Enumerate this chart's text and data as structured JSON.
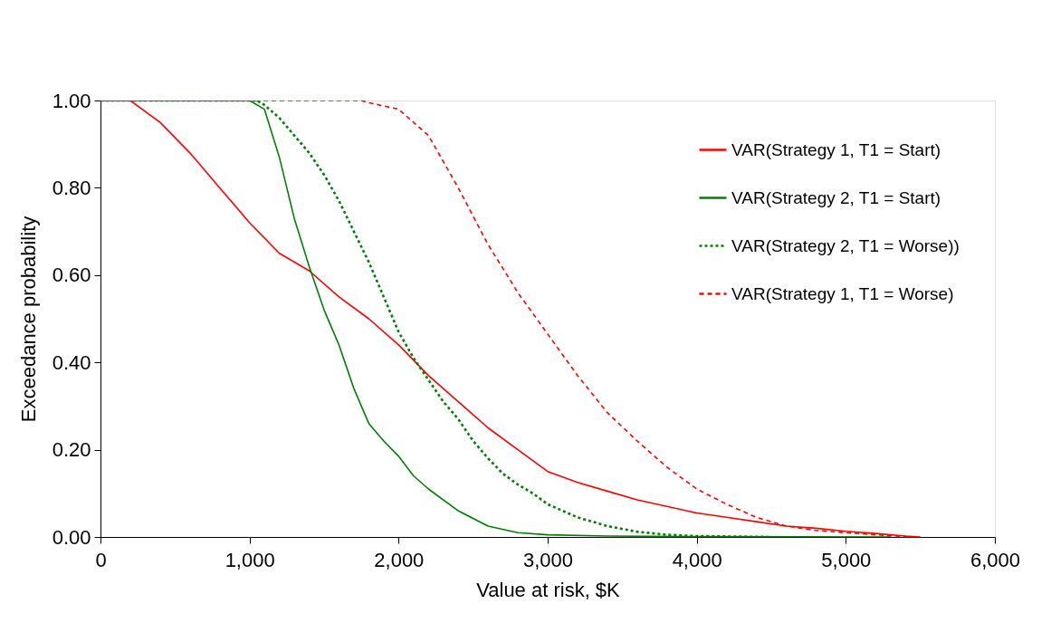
{
  "chart_data": {
    "type": "line",
    "xlabel": "Value at risk, $K",
    "ylabel": "Exceedance probability",
    "xlim": [
      0,
      6000
    ],
    "ylim": [
      0,
      1
    ],
    "xticks": [
      0,
      {
        "value": 1000,
        "label": "1,000"
      },
      {
        "value": 2000,
        "label": "2,000"
      },
      {
        "value": 3000,
        "label": "3,000"
      },
      {
        "value": 4000,
        "label": "4,000"
      },
      {
        "value": 5000,
        "label": "5,000"
      },
      {
        "value": 6000,
        "label": "6,000"
      }
    ],
    "yticks": [
      {
        "value": 0,
        "label": "0.00"
      },
      {
        "value": 0.2,
        "label": "0.20"
      },
      {
        "value": 0.4,
        "label": "0.40"
      },
      {
        "value": 0.6,
        "label": "0.60"
      },
      {
        "value": 0.8,
        "label": "0.80"
      },
      {
        "value": 1,
        "label": "1.00"
      }
    ],
    "grid": false,
    "legend": "top right",
    "marker": "none",
    "series": [
      {
        "name": "VAR(Strategy 1, T1 = Start)",
        "color": "#ff0000",
        "line_style": "solid",
        "x": [
          0,
          200,
          400,
          600,
          800,
          1000,
          1200,
          1400,
          1600,
          1800,
          2000,
          2200,
          2400,
          2600,
          2800,
          3000,
          3200,
          3400,
          3600,
          3800,
          4000,
          4200,
          4400,
          4600,
          4800,
          5000,
          5200,
          5400,
          5500
        ],
        "values": [
          1,
          1,
          0.95,
          0.88,
          0.8,
          0.72,
          0.65,
          0.61,
          0.55,
          0.5,
          0.44,
          0.37,
          0.31,
          0.25,
          0.2,
          0.15,
          0.125,
          0.105,
          0.085,
          0.07,
          0.055,
          0.045,
          0.035,
          0.025,
          0.02,
          0.013,
          0.008,
          0.002,
          0
        ]
      },
      {
        "name": "VAR(Strategy 2, T1 = Start)",
        "color": "#008000",
        "line_style": "solid",
        "x": [
          0,
          1000,
          1100,
          1200,
          1300,
          1400,
          1500,
          1600,
          1700,
          1800,
          1900,
          2000,
          2100,
          2200,
          2400,
          2600,
          2800,
          3000,
          3400,
          4000,
          5300
        ],
        "values": [
          1,
          1,
          0.98,
          0.87,
          0.73,
          0.62,
          0.52,
          0.44,
          0.34,
          0.26,
          0.22,
          0.185,
          0.14,
          0.11,
          0.06,
          0.025,
          0.01,
          0.005,
          0.002,
          0.001,
          0
        ]
      },
      {
        "name": "VAR(Strategy 2, T1 = Worse))",
        "color": "#008000",
        "line_style": "dotted",
        "x": [
          0,
          1050,
          1100,
          1200,
          1300,
          1400,
          1500,
          1600,
          1700,
          1800,
          1900,
          2000,
          2100,
          2200,
          2300,
          2400,
          2500,
          2600,
          2700,
          2800,
          2900,
          3000,
          3200,
          3400,
          3600,
          3800,
          4000,
          4500
        ],
        "values": [
          1,
          1,
          0.99,
          0.96,
          0.92,
          0.88,
          0.83,
          0.77,
          0.7,
          0.63,
          0.55,
          0.47,
          0.41,
          0.36,
          0.31,
          0.27,
          0.22,
          0.18,
          0.145,
          0.12,
          0.1,
          0.075,
          0.045,
          0.025,
          0.012,
          0.005,
          0.002,
          0
        ]
      },
      {
        "name": "VAR(Strategy 1, T1 = Worse)",
        "color": "#ff0000",
        "line_style": "dashed",
        "x": [
          0,
          1750,
          1800,
          2000,
          2200,
          2400,
          2600,
          2800,
          3000,
          3200,
          3400,
          3600,
          3800,
          4000,
          4200,
          4400,
          4600,
          4800,
          5000,
          5200,
          5450
        ],
        "values": [
          1,
          1,
          0.995,
          0.98,
          0.92,
          0.8,
          0.67,
          0.56,
          0.465,
          0.37,
          0.285,
          0.22,
          0.16,
          0.11,
          0.075,
          0.045,
          0.025,
          0.015,
          0.01,
          0.005,
          0
        ]
      }
    ]
  }
}
